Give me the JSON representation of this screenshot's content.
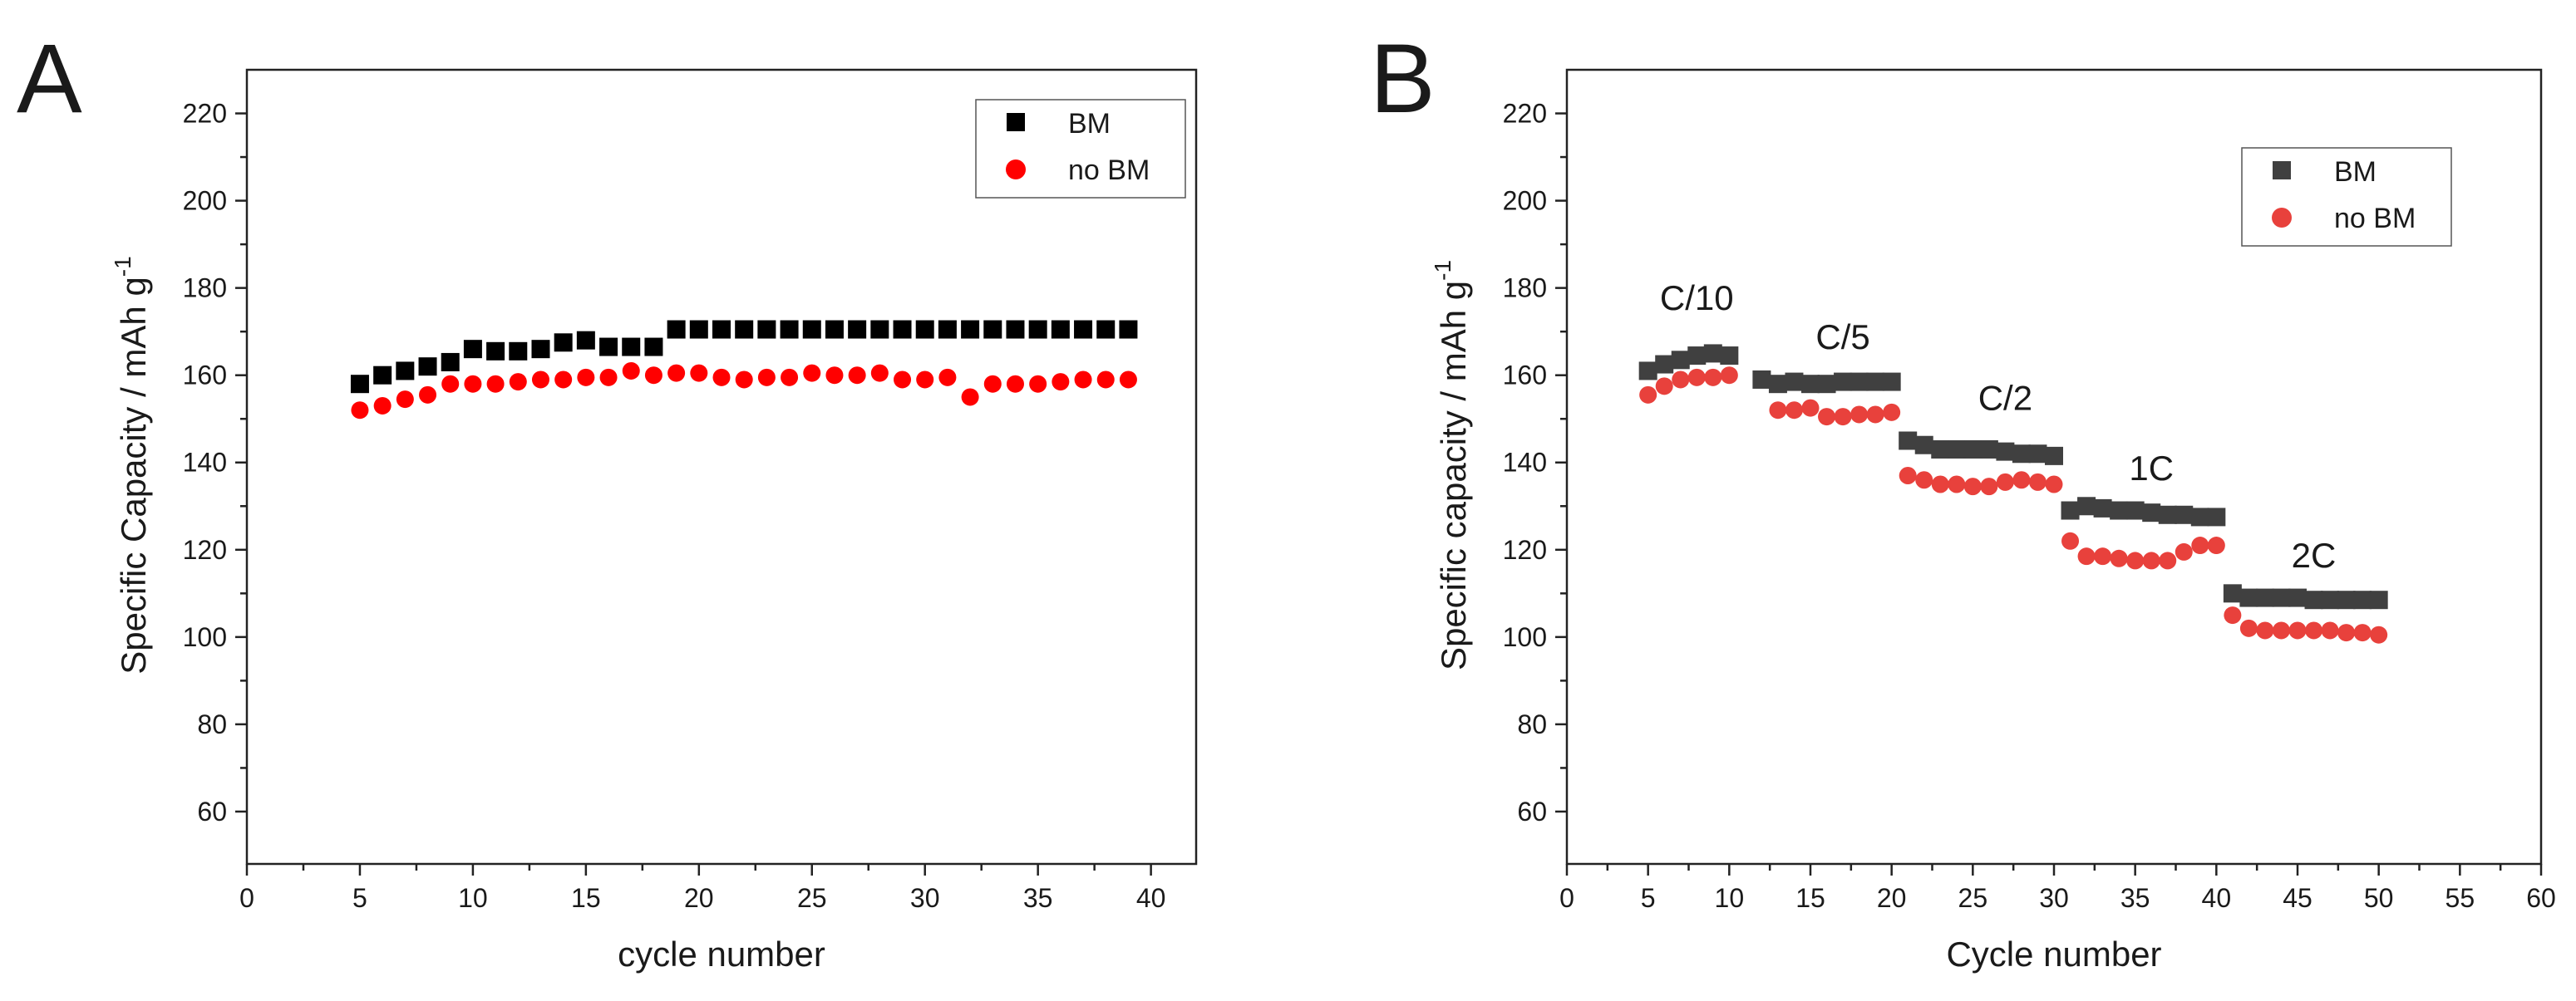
{
  "chart_data": [
    {
      "panel": "A",
      "type": "scatter",
      "xlabel": "cycle number",
      "ylabel": "Specific Capacity / mAh g",
      "ylabel_superscript": "-1",
      "xlim": [
        0,
        42
      ],
      "ylim": [
        48,
        230
      ],
      "xticks": [
        0,
        5,
        10,
        15,
        20,
        25,
        30,
        35,
        40
      ],
      "yticks": [
        60,
        80,
        100,
        120,
        140,
        160,
        180,
        200,
        220
      ],
      "legend_position": "top-right",
      "series": [
        {
          "name": "BM",
          "marker": "square",
          "color": "#000000",
          "x": [
            5,
            6,
            7,
            8,
            9,
            10,
            11,
            12,
            13,
            14,
            15,
            16,
            17,
            18,
            19,
            20,
            21,
            22,
            23,
            24,
            25,
            26,
            27,
            28,
            29,
            30,
            31,
            32,
            33,
            34,
            35,
            36,
            37,
            38,
            39
          ],
          "y": [
            158,
            160,
            161,
            162,
            163,
            166,
            165.5,
            165.5,
            166,
            167.5,
            168,
            166.5,
            166.5,
            166.5,
            170.5,
            170.5,
            170.5,
            170.5,
            170.5,
            170.5,
            170.5,
            170.5,
            170.5,
            170.5,
            170.5,
            170.5,
            170.5,
            170.5,
            170.5,
            170.5,
            170.5,
            170.5,
            170.5,
            170.5,
            170.5
          ]
        },
        {
          "name": "no BM",
          "marker": "circle",
          "color": "#ff0000",
          "x": [
            5,
            6,
            7,
            8,
            9,
            10,
            11,
            12,
            13,
            14,
            15,
            16,
            17,
            18,
            19,
            20,
            21,
            22,
            23,
            24,
            25,
            26,
            27,
            28,
            29,
            30,
            31,
            32,
            33,
            34,
            35,
            36,
            37,
            38,
            39
          ],
          "y": [
            152,
            153,
            154.5,
            155.5,
            158,
            158,
            158,
            158.5,
            159,
            159,
            159.5,
            159.5,
            161,
            160,
            160.5,
            160.5,
            159.5,
            159,
            159.5,
            159.5,
            160.5,
            160,
            160,
            160.5,
            159,
            159,
            159.5,
            155,
            158,
            158,
            158,
            158.5,
            159,
            159,
            159
          ]
        }
      ]
    },
    {
      "panel": "B",
      "type": "scatter",
      "xlabel": "Cycle number",
      "ylabel": "Specific capacity / mAh g",
      "ylabel_superscript": "-1",
      "xlim": [
        0,
        60
      ],
      "ylim": [
        48,
        230
      ],
      "xticks": [
        0,
        5,
        10,
        15,
        20,
        25,
        30,
        35,
        40,
        45,
        50,
        55,
        60
      ],
      "yticks": [
        60,
        80,
        100,
        120,
        140,
        160,
        180,
        200,
        220
      ],
      "legend_position": "top-right",
      "annotations": [
        {
          "text": "C/10",
          "x": 8,
          "y": 175
        },
        {
          "text": "C/5",
          "x": 17,
          "y": 166
        },
        {
          "text": "C/2",
          "x": 27,
          "y": 152
        },
        {
          "text": "1C",
          "x": 36,
          "y": 136
        },
        {
          "text": "2C",
          "x": 46,
          "y": 116
        }
      ],
      "series": [
        {
          "name": "BM",
          "marker": "square",
          "color": "#404040",
          "x": [
            5,
            6,
            7,
            8,
            9,
            10,
            12,
            13,
            14,
            15,
            16,
            17,
            18,
            19,
            20,
            21,
            22,
            23,
            24,
            25,
            26,
            27,
            28,
            29,
            30,
            31,
            32,
            33,
            34,
            35,
            36,
            37,
            38,
            39,
            40,
            41,
            42,
            43,
            44,
            45,
            46,
            47,
            48,
            49,
            50
          ],
          "y": [
            161,
            162.5,
            163.5,
            164.5,
            165,
            164.5,
            159,
            158,
            158.5,
            158,
            158,
            158.5,
            158.5,
            158.5,
            158.5,
            145,
            144,
            143,
            143,
            143,
            143,
            142.5,
            142,
            142,
            141.5,
            129,
            130,
            129.5,
            129,
            129,
            128.5,
            128,
            128,
            127.5,
            127.5,
            110,
            109,
            109,
            109,
            109,
            108.5,
            108.5,
            108.5,
            108.5,
            108.5
          ]
        },
        {
          "name": "no BM",
          "marker": "circle",
          "color": "#e8413c",
          "x": [
            5,
            6,
            7,
            8,
            9,
            10,
            13,
            14,
            15,
            16,
            17,
            18,
            19,
            20,
            21,
            22,
            23,
            24,
            25,
            26,
            27,
            28,
            29,
            30,
            31,
            32,
            33,
            34,
            35,
            36,
            37,
            38,
            39,
            40,
            41,
            42,
            43,
            44,
            45,
            46,
            47,
            48,
            49,
            50
          ],
          "y": [
            155.5,
            157.5,
            159,
            159.5,
            159.5,
            160,
            152,
            152,
            152.5,
            150.5,
            150.5,
            151,
            151,
            151.5,
            137,
            136,
            135,
            135,
            134.5,
            134.5,
            135.5,
            136,
            135.5,
            135,
            122,
            118.5,
            118.5,
            118,
            117.5,
            117.5,
            117.5,
            119.5,
            121,
            121,
            105,
            102,
            101.5,
            101.5,
            101.5,
            101.5,
            101.5,
            101,
            101,
            100.5
          ]
        }
      ]
    }
  ]
}
